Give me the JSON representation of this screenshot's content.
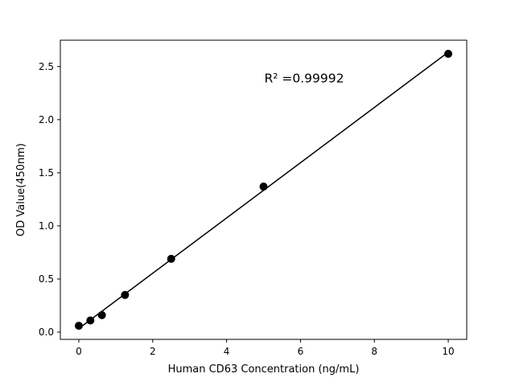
{
  "chart_data": {
    "type": "scatter",
    "title": "",
    "xlabel": "Human CD63 Concentration (ng/mL)",
    "ylabel": "OD Value(450nm)",
    "x": [
      0,
      0.3125,
      0.625,
      1.25,
      2.5,
      5,
      10
    ],
    "y": [
      0.06,
      0.11,
      0.16,
      0.35,
      0.69,
      1.37,
      2.62
    ],
    "xlim": [
      -0.5,
      10.5
    ],
    "ylim": [
      -0.068,
      2.748
    ],
    "x_ticks": [
      0,
      2,
      4,
      6,
      8,
      10
    ],
    "x_tick_labels": [
      "0",
      "2",
      "4",
      "6",
      "8",
      "10"
    ],
    "y_ticks": [
      0.0,
      0.5,
      1.0,
      1.5,
      2.0,
      2.5
    ],
    "y_tick_labels": [
      "0.0",
      "0.5",
      "1.0",
      "1.5",
      "2.0",
      "2.5"
    ],
    "fit_line": true,
    "annotation": {
      "text": "R² =0.99992",
      "x": 6.1,
      "y": 2.35
    },
    "grid": false,
    "legend": null,
    "marker_size": 5,
    "colors": {
      "marker": "#000000",
      "line": "#000000",
      "spine": "#000000",
      "background": "#ffffff"
    }
  }
}
